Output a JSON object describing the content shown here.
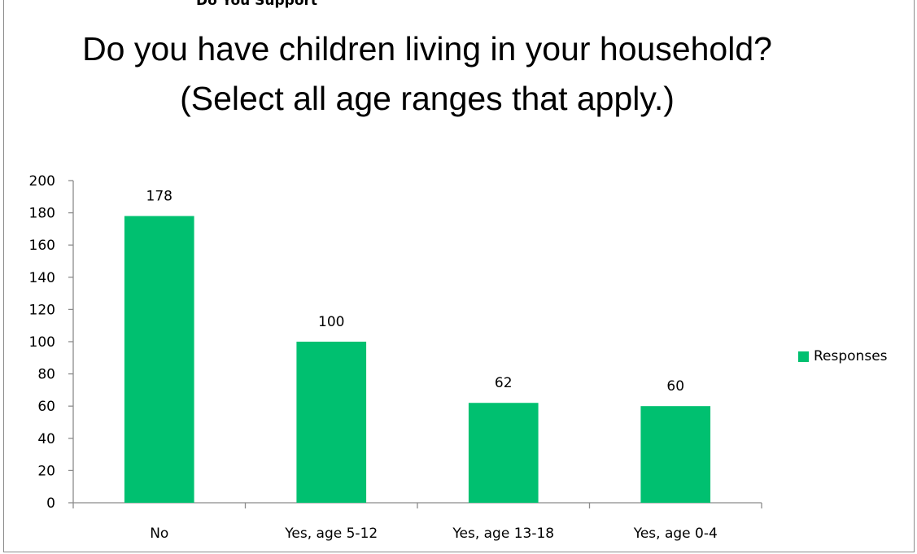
{
  "header": {
    "cut_title": "Do You Support"
  },
  "colors": {
    "bar": "#00c070",
    "axis": "#8c8c8c"
  },
  "chart_data": {
    "type": "bar",
    "title": "Do you have children living in your household? (Select all age ranges that apply.)",
    "categories": [
      "No",
      "Yes, age 5-12",
      "Yes, age 13-18",
      "Yes, age 0-4"
    ],
    "series": [
      {
        "name": "Responses",
        "values": [
          178,
          100,
          62,
          60
        ]
      }
    ],
    "data_labels": [
      "178",
      "100",
      "62",
      "60"
    ],
    "y_ticks": [
      "0",
      "20",
      "40",
      "60",
      "80",
      "100",
      "120",
      "140",
      "160",
      "180",
      "200"
    ],
    "ylim": [
      0,
      200
    ],
    "xlabel": "",
    "ylabel": "",
    "grid": false,
    "legend_position": "right"
  }
}
